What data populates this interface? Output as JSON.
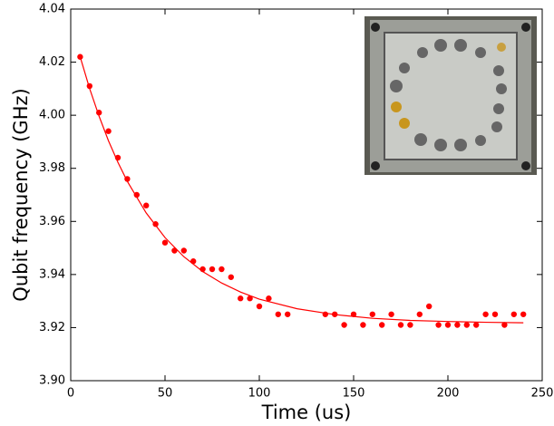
{
  "chart_data": {
    "type": "scatter",
    "xlabel": "Time (us)",
    "ylabel": "Qubit frequency (GHz)",
    "xlim": [
      0,
      250
    ],
    "xticks": [
      0,
      50,
      100,
      150,
      200,
      250
    ],
    "ylim": [
      3.9,
      4.04
    ],
    "yticks": [
      {
        "value": 3.9,
        "label": "3.90"
      },
      3.92,
      3.94,
      3.96,
      3.98,
      {
        "value": 4,
        "label": "4.00"
      },
      4.02,
      4.04
    ],
    "series": [
      {
        "mode": "markers",
        "color": "#ff0000",
        "x": [
          5,
          10,
          15,
          20,
          25,
          30,
          35,
          40,
          45,
          50,
          55,
          60,
          65,
          70,
          75,
          80,
          85,
          90,
          95,
          100,
          105,
          110,
          115,
          135,
          140,
          145,
          150,
          155,
          160,
          165,
          170,
          175,
          180,
          185,
          190,
          195,
          200,
          205,
          210,
          215,
          220,
          225,
          230,
          235,
          240
        ],
        "values": [
          4.022,
          4.011,
          4.001,
          3.994,
          3.984,
          3.976,
          3.97,
          3.966,
          3.959,
          3.952,
          3.949,
          3.949,
          3.945,
          3.942,
          3.942,
          3.942,
          3.939,
          3.931,
          3.931,
          3.928,
          3.931,
          3.925,
          3.925,
          3.925,
          3.925,
          3.921,
          3.925,
          3.921,
          3.925,
          3.921,
          3.925,
          3.921,
          3.921,
          3.925,
          3.928,
          3.921,
          3.921,
          3.921,
          3.921,
          3.921,
          3.925,
          3.925,
          3.921,
          3.925,
          3.925
        ]
      },
      {
        "mode": "line",
        "color": "#ff0000",
        "x": [
          5,
          10,
          15,
          20,
          25,
          30,
          40,
          50,
          60,
          70,
          80,
          90,
          100,
          120,
          140,
          160,
          180,
          200,
          220,
          240
        ],
        "values": [
          4.022,
          4.0101,
          3.9997,
          3.9904,
          3.9823,
          3.9751,
          3.9632,
          3.9539,
          3.9467,
          3.9411,
          3.9368,
          3.9334,
          3.9307,
          3.9271,
          3.9249,
          3.9235,
          3.9227,
          3.9223,
          3.922,
          3.9218
        ]
      }
    ]
  }
}
